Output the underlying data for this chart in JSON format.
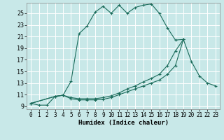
{
  "xlabel": "Humidex (Indice chaleur)",
  "background_color": "#c8e8e8",
  "grid_color": "#ffffff",
  "line_color": "#1a6b5a",
  "xlim_min": -0.5,
  "xlim_max": 23.5,
  "ylim_min": 8.5,
  "ylim_max": 26.8,
  "xticks": [
    0,
    1,
    2,
    3,
    4,
    5,
    6,
    7,
    8,
    9,
    10,
    11,
    12,
    13,
    14,
    15,
    16,
    17,
    18,
    19,
    20,
    21,
    22,
    23
  ],
  "yticks": [
    9,
    11,
    13,
    15,
    17,
    19,
    21,
    23,
    25
  ],
  "line1_x": [
    0,
    1,
    2,
    3,
    4,
    5,
    6,
    7,
    8,
    9,
    10,
    11,
    12,
    13,
    14,
    15,
    16,
    17,
    18,
    19
  ],
  "line1_y": [
    9.5,
    9.2,
    9.2,
    10.7,
    10.9,
    13.3,
    21.5,
    22.8,
    25.2,
    26.2,
    25.0,
    26.4,
    25.0,
    26.0,
    26.4,
    26.6,
    25.0,
    22.5,
    20.4,
    20.5
  ],
  "line2_x": [
    0,
    3,
    4,
    5,
    6,
    7,
    8,
    9,
    10,
    11,
    12,
    13,
    14,
    15,
    16,
    17,
    18,
    19,
    20,
    21,
    22,
    23
  ],
  "line2_y": [
    9.5,
    10.7,
    10.9,
    10.5,
    10.3,
    10.3,
    10.3,
    10.5,
    10.8,
    11.3,
    12.0,
    12.5,
    13.2,
    13.8,
    14.5,
    16.0,
    18.5,
    20.5,
    16.7,
    14.2,
    13.0,
    12.5
  ],
  "line3_x": [
    0,
    3,
    4,
    5,
    6,
    7,
    8,
    9,
    10,
    11,
    12,
    13,
    14,
    15,
    16,
    17,
    18,
    19,
    20,
    21,
    22,
    23
  ],
  "line3_y": [
    9.5,
    10.7,
    10.9,
    10.3,
    10.1,
    10.1,
    10.1,
    10.2,
    10.5,
    11.0,
    11.5,
    12.0,
    12.5,
    13.0,
    13.5,
    14.5,
    16.0,
    20.5,
    null,
    null,
    null,
    null
  ]
}
